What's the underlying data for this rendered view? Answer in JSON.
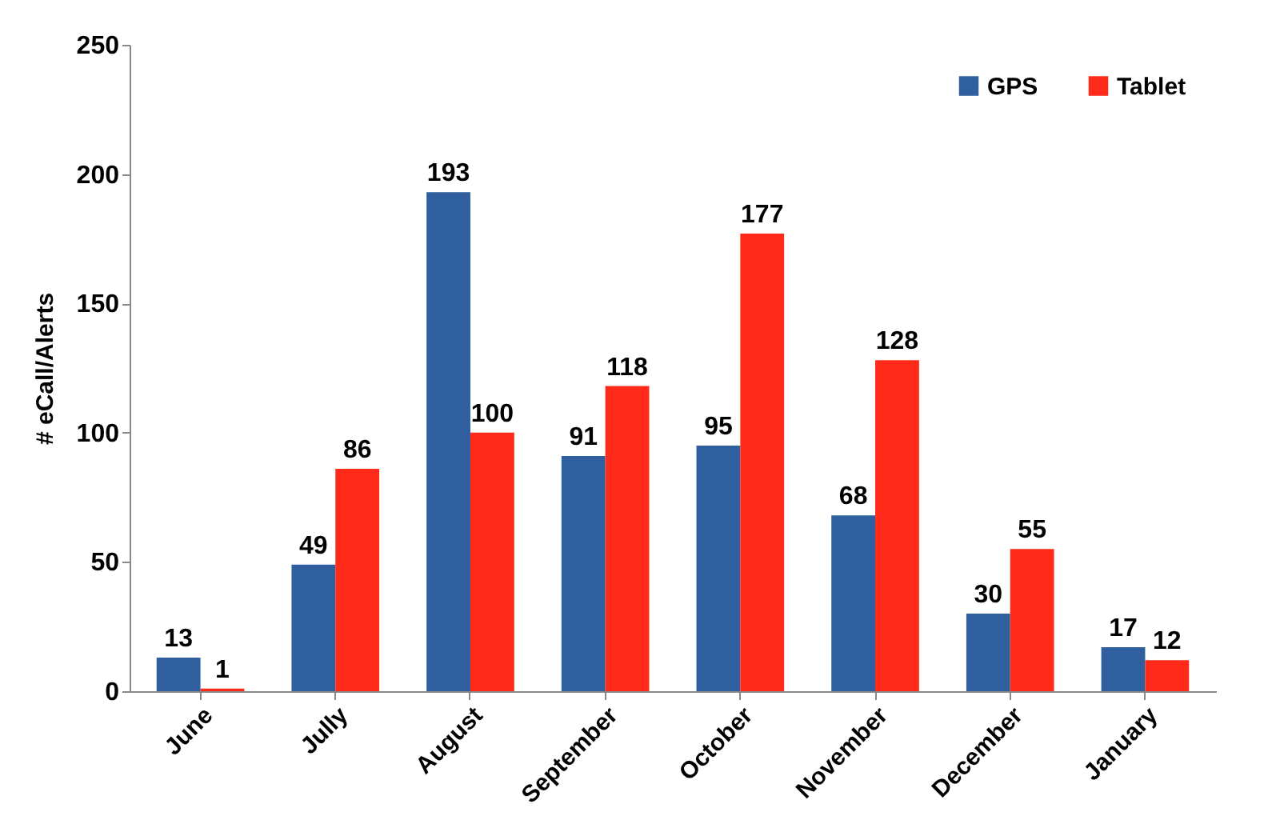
{
  "chart_data": {
    "type": "bar",
    "ylabel": "# eCall/Alerts",
    "categories": [
      "June",
      "Jully",
      "August",
      "September",
      "October",
      "November",
      "December",
      "January"
    ],
    "series": [
      {
        "name": "GPS",
        "color": "#2f5f9e",
        "values": [
          13,
          49,
          193,
          91,
          95,
          68,
          30,
          17
        ]
      },
      {
        "name": "Tablet",
        "color": "#ff2a1a",
        "values": [
          1,
          86,
          100,
          118,
          177,
          128,
          55,
          12
        ]
      }
    ],
    "ylim": [
      0,
      250
    ],
    "yticks": [
      0,
      50,
      100,
      150,
      200,
      250
    ],
    "grid": false,
    "legend": "top right",
    "data_labels": true
  }
}
